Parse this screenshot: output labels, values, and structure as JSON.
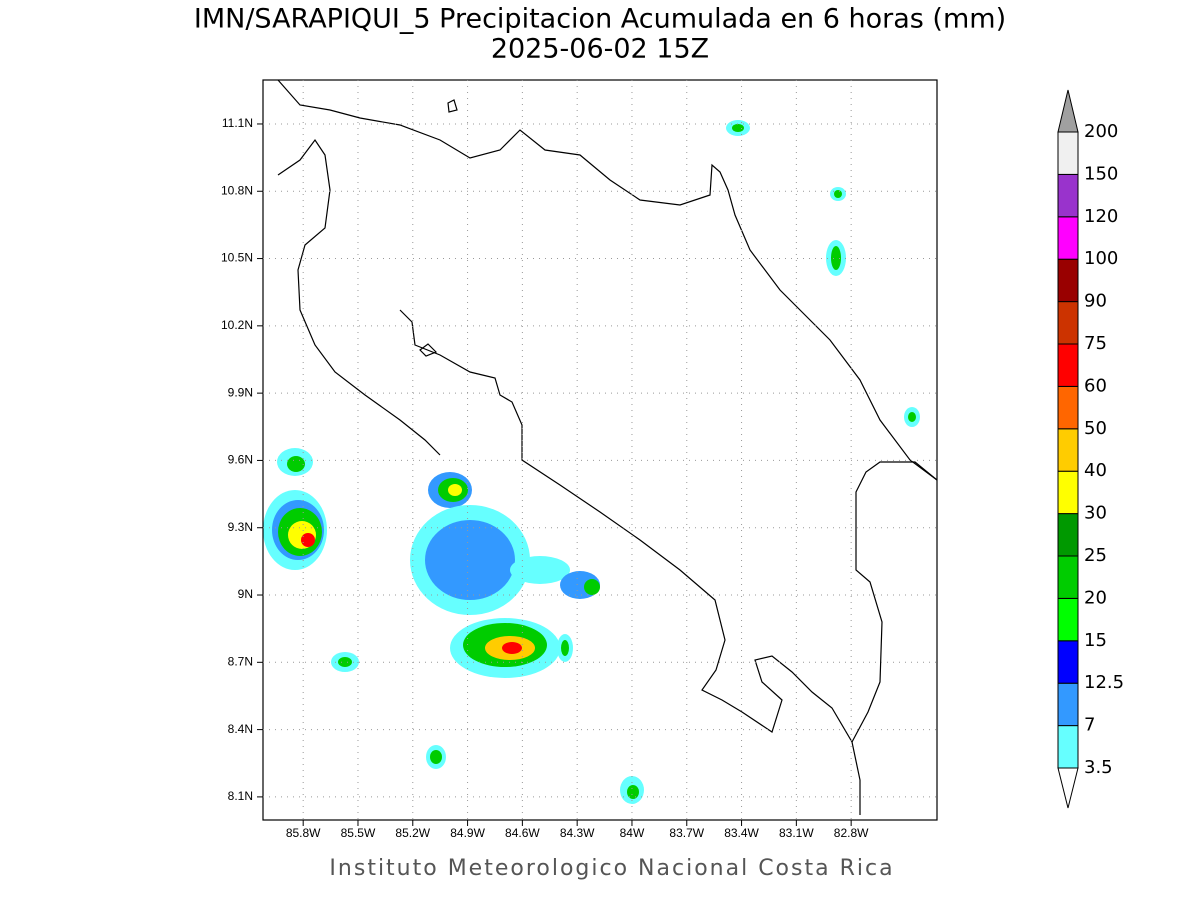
{
  "title": "IMN/SARAPIQUI_5 Precipitacion Acumulada en 6 horas (mm)",
  "subtitle": "2025-06-02 15Z",
  "footer": "Instituto Meteorologico Nacional Costa Rica",
  "map": {
    "xlim": [
      -86.02,
      -82.33
    ],
    "ylim": [
      7.997,
      11.296
    ],
    "grid": true,
    "xticks": [
      {
        "value": -85.8,
        "label": "85.8W"
      },
      {
        "value": -85.5,
        "label": "85.5W"
      },
      {
        "value": -85.2,
        "label": "85.2W"
      },
      {
        "value": -84.9,
        "label": "84.9W"
      },
      {
        "value": -84.6,
        "label": "84.6W"
      },
      {
        "value": -84.3,
        "label": "84.3W"
      },
      {
        "value": -84.0,
        "label": "84W"
      },
      {
        "value": -83.7,
        "label": "83.7W"
      },
      {
        "value": -83.4,
        "label": "83.4W"
      },
      {
        "value": -83.1,
        "label": "83.1W"
      },
      {
        "value": -82.8,
        "label": "82.8W"
      }
    ],
    "yticks": [
      {
        "value": 8.1,
        "label": "8.1N"
      },
      {
        "value": 8.4,
        "label": "8.4N"
      },
      {
        "value": 8.7,
        "label": "8.7N"
      },
      {
        "value": 9.0,
        "label": "9N"
      },
      {
        "value": 9.3,
        "label": "9.3N"
      },
      {
        "value": 9.6,
        "label": "9.6N"
      },
      {
        "value": 9.9,
        "label": "9.9N"
      },
      {
        "value": 10.2,
        "label": "10.2N"
      },
      {
        "value": 10.5,
        "label": "10.5N"
      },
      {
        "value": 10.8,
        "label": "10.8N"
      },
      {
        "value": 11.1,
        "label": "11.1N"
      }
    ]
  },
  "colorbar": {
    "levels": [
      3.5,
      7,
      12.5,
      15,
      20,
      25,
      30,
      40,
      50,
      60,
      75,
      90,
      100,
      120,
      150,
      200
    ],
    "colors": [
      "#66ffff",
      "#3399ff",
      "#0000ff",
      "#00ff00",
      "#00cc00",
      "#009900",
      "#ffff00",
      "#ffcc00",
      "#ff6600",
      "#ff0000",
      "#cc3300",
      "#990000",
      "#ff00ff",
      "#9933cc",
      "#f0f0f0"
    ],
    "under_color": "#ffffff",
    "over_color": "#a0a0a0"
  }
}
